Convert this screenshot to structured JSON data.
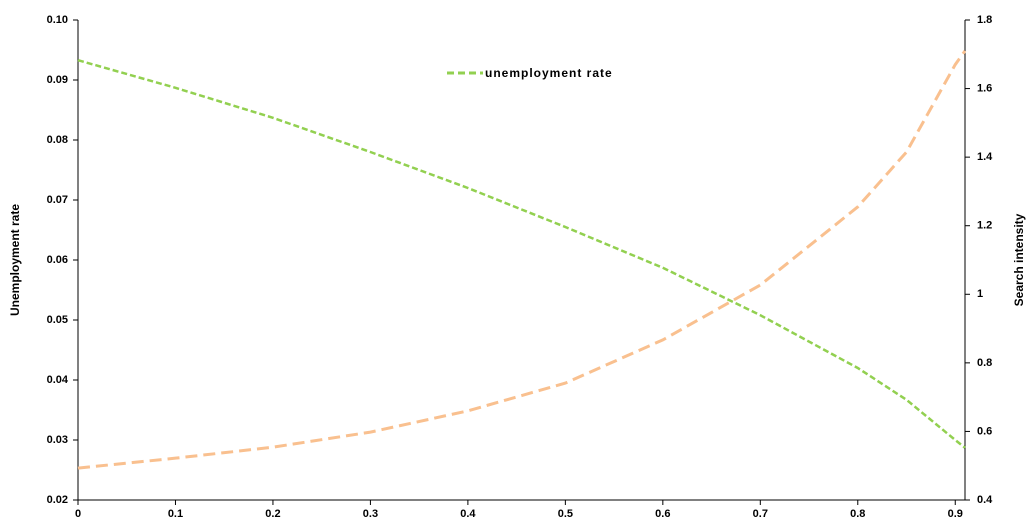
{
  "chart_data": {
    "type": "line",
    "x": [
      0,
      0.1,
      0.2,
      0.3,
      0.4,
      0.5,
      0.6,
      0.7,
      0.8,
      0.85,
      0.9,
      0.91
    ],
    "series": [
      {
        "name": "unemployment rate",
        "color": "#92d050",
        "values": [
          0.0933,
          0.0887,
          0.0837,
          0.078,
          0.072,
          0.0655,
          0.0587,
          0.0508,
          0.042,
          0.0367,
          0.03,
          0.0287
        ]
      },
      {
        "color": "#f9c08f",
        "axis": "y2",
        "values": [
          0.493,
          0.522,
          0.554,
          0.598,
          0.66,
          0.741,
          0.867,
          1.027,
          1.255,
          1.415,
          1.67,
          1.71
        ]
      }
    ],
    "y_label": "Unemployment rate",
    "y2_label": "Search intensity",
    "xlim": [
      0,
      0.91
    ],
    "xticks": [
      0,
      0.1,
      0.2,
      0.3,
      0.4,
      0.5,
      0.6,
      0.7,
      0.8,
      0.9
    ],
    "ylim": [
      0.02,
      0.1
    ],
    "yticks": [
      0.02,
      0.03,
      0.04,
      0.05,
      0.06,
      0.07,
      0.08,
      0.09,
      {
        "value": 0.1,
        "label": "0.10"
      }
    ],
    "y2lim": [
      0.4,
      1.8
    ],
    "y2ticks": [
      0.4,
      0.6,
      0.8,
      1,
      1.2,
      1.4,
      1.6,
      1.8
    ]
  }
}
